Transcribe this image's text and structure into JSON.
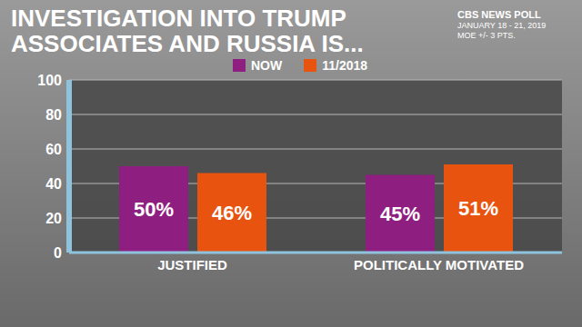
{
  "chart_data": {
    "type": "bar",
    "title": "INVESTIGATION INTO TRUMP ASSOCIATES AND RUSSIA IS...",
    "annotations": [
      "CBS NEWS POLL",
      "JANUARY 18 - 21, 2019",
      "MOE +/- 3 PTS."
    ],
    "categories": [
      "JUSTIFIED",
      "POLITICALLY MOTIVATED"
    ],
    "series": [
      {
        "name": "NOW",
        "color": "#8e1f80",
        "values": [
          50,
          45
        ],
        "value_labels": [
          "50%",
          "45%"
        ]
      },
      {
        "name": "11/2018",
        "color": "#e8530f",
        "values": [
          46,
          51
        ],
        "value_labels": [
          "46%",
          "51%"
        ]
      }
    ],
    "ylim": [
      0,
      100
    ],
    "yticks": [
      0,
      20,
      40,
      60,
      80,
      100
    ],
    "grid": true,
    "legend": "top",
    "data_labels": true
  }
}
